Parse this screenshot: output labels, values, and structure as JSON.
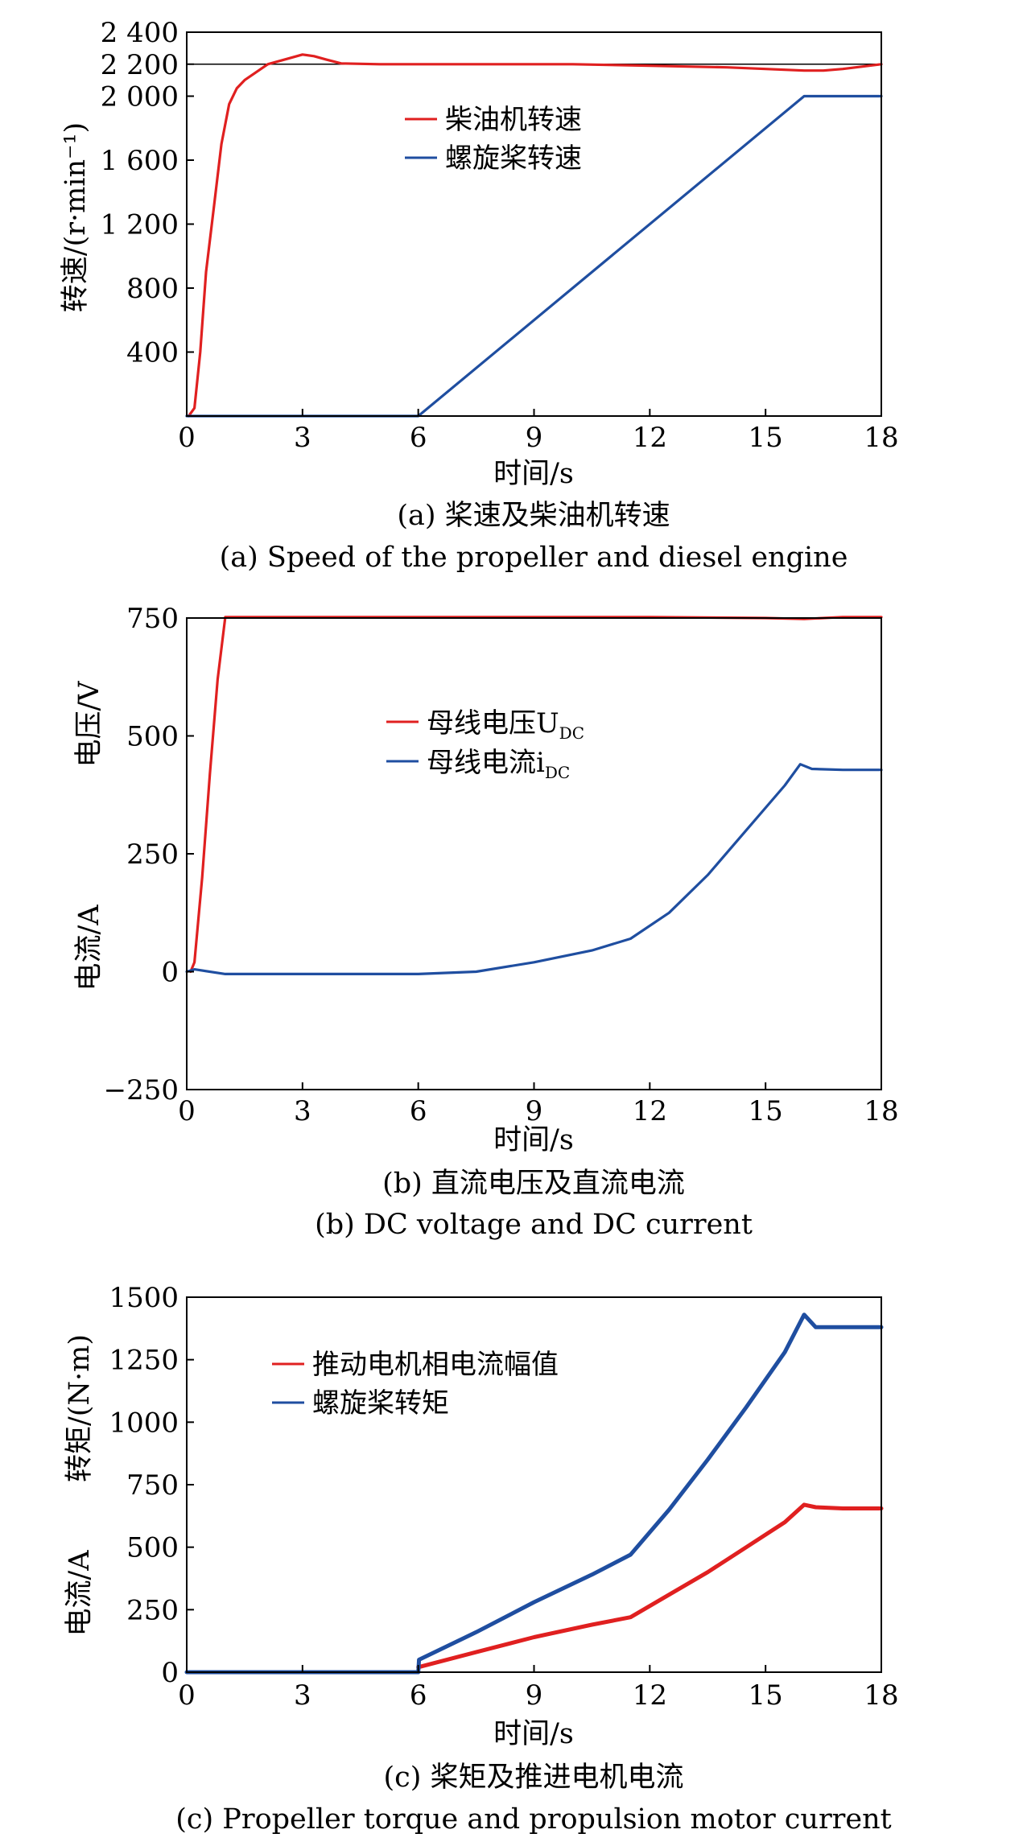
{
  "charts": [
    {
      "caption_cn": "(a) 桨速及柴油机转速",
      "caption_en": "(a) Speed of the propeller and diesel engine",
      "xlabel": "时间/s",
      "ylabel": "转速/(r·min⁻¹)",
      "xticks": [
        "0",
        "3",
        "6",
        "9",
        "12",
        "15",
        "18"
      ],
      "yticks": [
        "2 400",
        "2 200",
        "2 000",
        "1 600",
        "1 200",
        "800",
        "400"
      ],
      "legend": [
        "柴油机转速",
        "螺旋桨转速"
      ]
    },
    {
      "caption_cn": "(b) 直流电压及直流电流",
      "caption_en": "(b) DC voltage and DC current",
      "xlabel": "时间/s",
      "ylabel_top": "电压/V",
      "ylabel_bottom": "电流/A",
      "xticks": [
        "0",
        "3",
        "6",
        "9",
        "12",
        "15",
        "18"
      ],
      "yticks": [
        "750",
        "500",
        "250",
        "0",
        "−250"
      ],
      "legend": [
        "母线电压U",
        "母线电流i"
      ],
      "legend_sub": "DC"
    },
    {
      "caption_cn": "(c) 桨矩及推进电机电流",
      "caption_en": "(c) Propeller torque and propulsion motor current",
      "xlabel": "时间/s",
      "ylabel_top": "转矩/(N·m)",
      "ylabel_bottom": "电流/A",
      "xticks": [
        "0",
        "3",
        "6",
        "9",
        "12",
        "15",
        "18"
      ],
      "yticks": [
        "1500",
        "1250",
        "1000",
        "750",
        "500",
        "250",
        "0"
      ],
      "legend": [
        "推动电机相电流幅值",
        "螺旋桨转矩"
      ]
    }
  ],
  "colors": {
    "red": "#e02020",
    "blue": "#1f4ea0"
  },
  "chart_data": [
    {
      "type": "line",
      "xlim": [
        0,
        18
      ],
      "ylim": [
        0,
        2400
      ],
      "reference_line_y": 2200,
      "series": [
        {
          "name": "柴油机转速",
          "color": "#e02020",
          "x": [
            0.05,
            0.2,
            0.35,
            0.5,
            0.7,
            0.9,
            1.1,
            1.3,
            1.5,
            1.8,
            2.1,
            2.4,
            2.7,
            3.0,
            3.3,
            3.6,
            4.0,
            5.0,
            6.0,
            8.0,
            10.0,
            12.0,
            14.0,
            15.0,
            16.0,
            16.5,
            17.0,
            18.0
          ],
          "y": [
            0,
            50,
            400,
            900,
            1300,
            1700,
            1950,
            2050,
            2100,
            2150,
            2200,
            2220,
            2240,
            2260,
            2250,
            2230,
            2205,
            2200,
            2200,
            2200,
            2200,
            2190,
            2180,
            2170,
            2160,
            2160,
            2170,
            2200
          ]
        },
        {
          "name": "螺旋桨转速",
          "color": "#1f4ea0",
          "x": [
            0,
            6,
            16,
            18
          ],
          "y": [
            0,
            0,
            2000,
            2000
          ]
        }
      ]
    },
    {
      "type": "line",
      "xlim": [
        0,
        18
      ],
      "ylim": [
        -250,
        750
      ],
      "series": [
        {
          "name": "母线电压U_DC",
          "color": "#e02020",
          "x": [
            0.1,
            0.2,
            0.4,
            0.6,
            0.8,
            1.0,
            3,
            6,
            9,
            12,
            15,
            16,
            17,
            18
          ],
          "y": [
            0,
            20,
            200,
            420,
            620,
            752,
            752,
            752,
            752,
            752,
            750,
            748,
            752,
            752
          ]
        },
        {
          "name": "母线电流i_DC",
          "color": "#1f4ea0",
          "x": [
            0,
            0.2,
            1.0,
            3.0,
            6.0,
            7.5,
            9.0,
            10.5,
            11.5,
            12.5,
            13.5,
            14.5,
            15.5,
            15.9,
            16.2,
            17,
            18
          ],
          "y": [
            0,
            5,
            -5,
            -5,
            -5,
            0,
            20,
            45,
            70,
            125,
            205,
            300,
            395,
            440,
            430,
            428,
            428
          ]
        }
      ]
    },
    {
      "type": "line",
      "xlim": [
        0,
        18
      ],
      "ylim": [
        0,
        1500
      ],
      "series": [
        {
          "name": "推动电机相电流幅值",
          "color": "#e02020",
          "x": [
            6.0,
            7.5,
            9.0,
            10.5,
            11.5,
            12.5,
            13.5,
            14.5,
            15.5,
            16.0,
            16.3,
            17,
            18
          ],
          "y": [
            20,
            80,
            140,
            190,
            220,
            310,
            400,
            500,
            600,
            670,
            660,
            655,
            655
          ]
        },
        {
          "name": "螺旋桨转矩",
          "color": "#1f4ea0",
          "x": [
            0,
            3,
            6,
            6.02,
            7.5,
            9.0,
            10.5,
            11.5,
            12.5,
            13.5,
            14.5,
            15.5,
            16.0,
            16.3,
            17,
            18
          ],
          "y": [
            0,
            0,
            0,
            50,
            160,
            280,
            390,
            470,
            650,
            850,
            1060,
            1280,
            1430,
            1380,
            1380,
            1380
          ]
        }
      ]
    }
  ]
}
